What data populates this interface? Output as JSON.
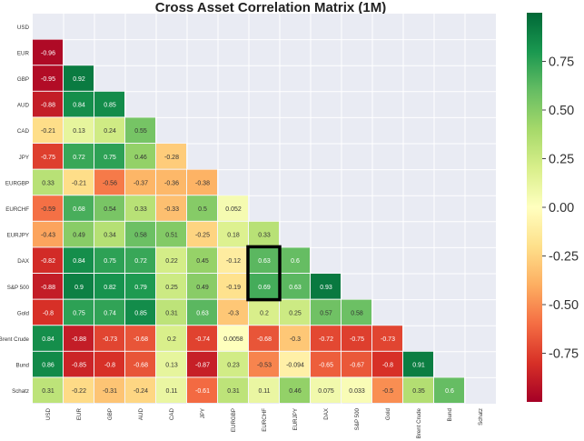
{
  "chart_data": {
    "type": "heatmap",
    "title": "Cross Asset Correlation Matrix (1M)",
    "labels": [
      "USD",
      "EUR",
      "GBP",
      "AUD",
      "CAD",
      "JPY",
      "EURGBP",
      "EURCHF",
      "EURJPY",
      "DAX",
      "S&P 500",
      "Gold",
      "Brent Crude",
      "Bund",
      "Schatz"
    ],
    "matrix_lower": [
      [],
      [
        "-0.96"
      ],
      [
        "-0.95",
        "0.92"
      ],
      [
        "-0.88",
        "0.84",
        "0.85"
      ],
      [
        "-0.21",
        "0.13",
        "0.24",
        "0.55"
      ],
      [
        "-0.75",
        "0.72",
        "0.75",
        "0.46",
        "-0.28"
      ],
      [
        "0.33",
        "-0.21",
        "-0.56",
        "-0.37",
        "-0.36",
        "-0.38"
      ],
      [
        "-0.59",
        "0.68",
        "0.54",
        "0.33",
        "-0.33",
        "0.5",
        "0.052"
      ],
      [
        "-0.43",
        "0.49",
        "0.34",
        "0.58",
        "0.51",
        "-0.25",
        "0.18",
        "0.33"
      ],
      [
        "-0.82",
        "0.84",
        "0.75",
        "0.72",
        "0.22",
        "0.45",
        "-0.12",
        "0.63",
        "0.6"
      ],
      [
        "-0.88",
        "0.9",
        "0.82",
        "0.79",
        "0.25",
        "0.49",
        "-0.19",
        "0.69",
        "0.63",
        "0.93"
      ],
      [
        "-0.8",
        "0.75",
        "0.74",
        "0.85",
        "0.31",
        "0.63",
        "-0.3",
        "0.2",
        "0.25",
        "0.57",
        "0.58"
      ],
      [
        "0.84",
        "-0.88",
        "-0.73",
        "-0.68",
        "0.2",
        "-0.74",
        "0.0058",
        "-0.68",
        "-0.3",
        "-0.72",
        "-0.75",
        "-0.73"
      ],
      [
        "0.86",
        "-0.85",
        "-0.8",
        "-0.68",
        "0.13",
        "-0.87",
        "0.23",
        "-0.53",
        "-0.094",
        "-0.65",
        "-0.67",
        "-0.8",
        "0.91"
      ],
      [
        "0.31",
        "-0.22",
        "-0.31",
        "-0.24",
        "0.11",
        "-0.61",
        "0.31",
        "0.11",
        "0.46",
        "0.075",
        "0.033",
        "-0.5",
        "0.35",
        "0.6"
      ]
    ],
    "highlight": {
      "label": "EURCHF",
      "rows": [
        "DAX",
        "S&P 500"
      ]
    },
    "vmin": -1,
    "vmax": 1,
    "colormap": "RdYlGn",
    "colorbar_ticks": [
      "0.75",
      "0.50",
      "0.25",
      "0.00",
      "-0.25",
      "-0.50",
      "-0.75"
    ],
    "colorbar_tick_values": [
      0.75,
      0.5,
      0.25,
      0,
      -0.25,
      -0.5,
      -0.75
    ],
    "empty_cell_color": "#e9ebf3",
    "highlight_color": "#000000"
  }
}
